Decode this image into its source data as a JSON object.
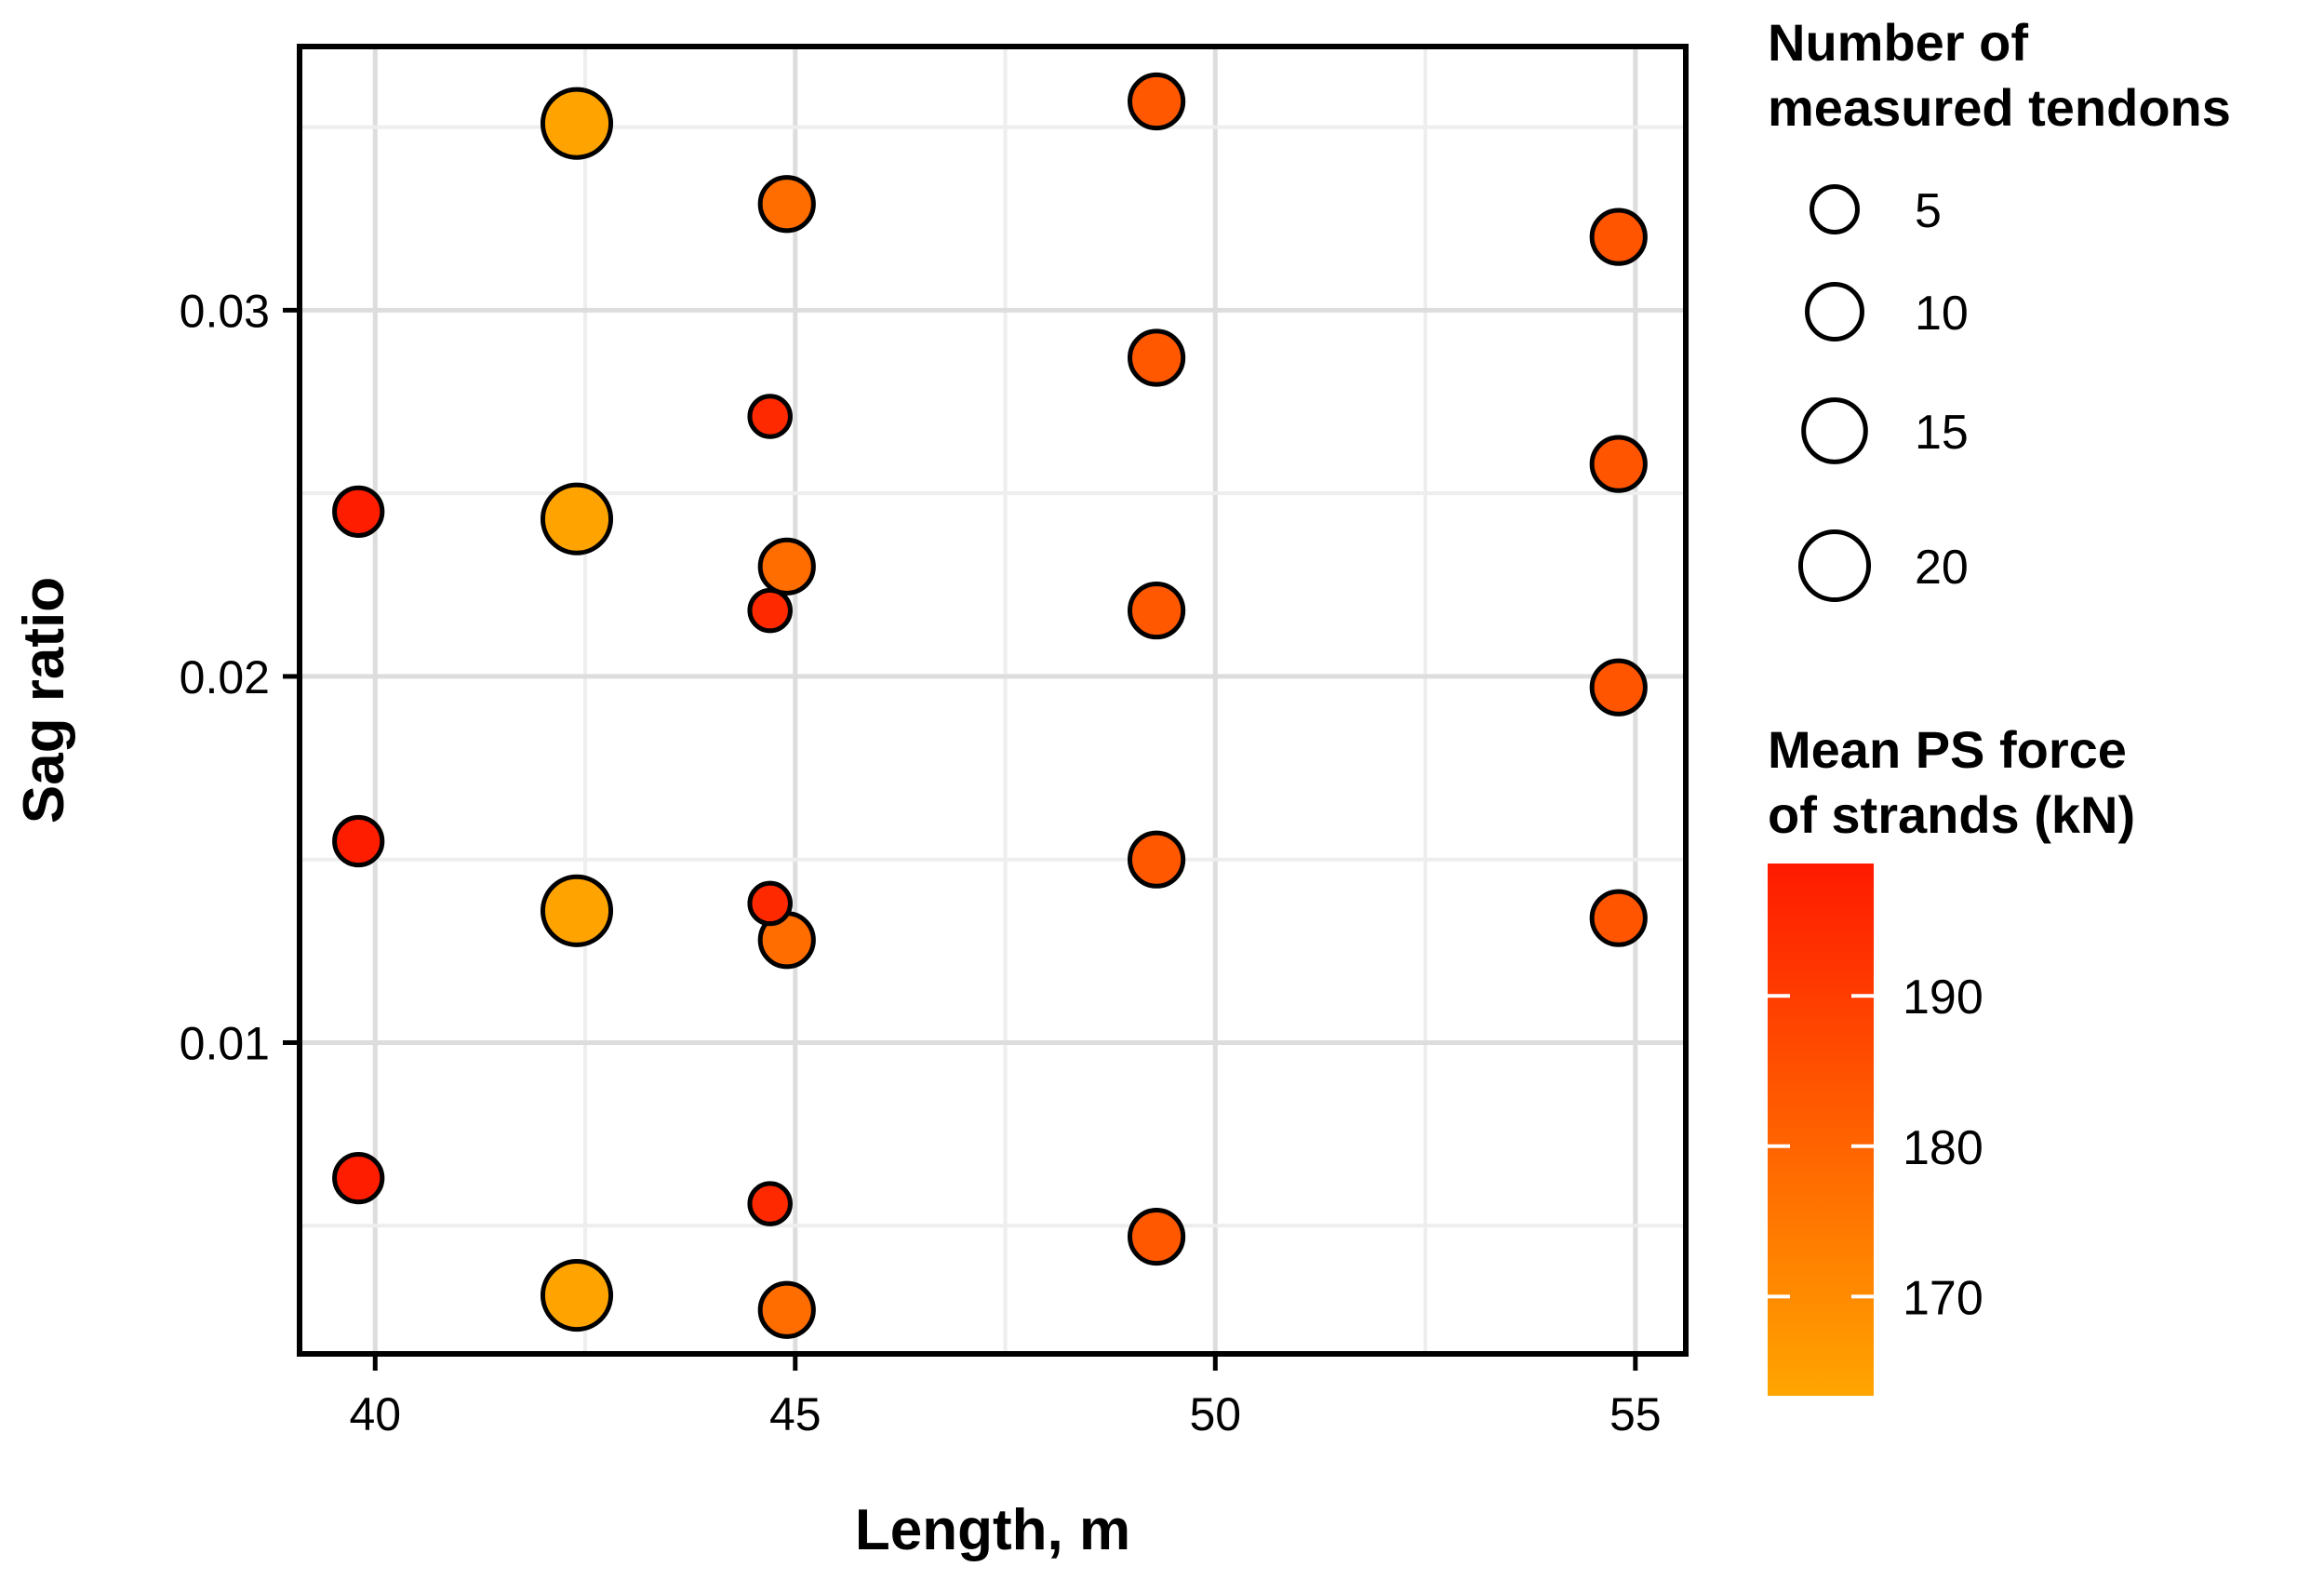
{
  "colors": {
    "low": "#ffa500",
    "high": "#ff1a00",
    "grid_major": "#dddddd",
    "grid_minor": "#eeeeee",
    "stroke": "#000000"
  },
  "chart_data": {
    "type": "scatter",
    "xlabel": "Length, m",
    "ylabel": "Sag ratio",
    "xlim": [
      39.1,
      55.6
    ],
    "ylim": [
      0.0015,
      0.0372
    ],
    "xticks": [
      40,
      45,
      50,
      55
    ],
    "yticks": [
      0.01,
      0.02,
      0.03
    ],
    "xtick_labels": [
      "40",
      "45",
      "50",
      "55"
    ],
    "ytick_labels": [
      "0.01",
      "0.02",
      "0.03"
    ],
    "grid": true,
    "size_legend": {
      "title_lines": [
        "Number of",
        "measured tendons"
      ],
      "values": [
        5,
        10,
        15,
        20
      ],
      "labels": [
        "5",
        "10",
        "15",
        "20"
      ]
    },
    "color_legend": {
      "title_lines": [
        "Mean PS force",
        "of strands (kN)"
      ],
      "range": [
        163.4,
        198.8
      ],
      "ticks": [
        170,
        180,
        190
      ],
      "tick_labels": [
        "170",
        "180",
        "190"
      ]
    },
    "points": [
      {
        "x": 39.8,
        "y": 0.0245,
        "n": 6,
        "force": 198
      },
      {
        "x": 39.8,
        "y": 0.0155,
        "n": 6,
        "force": 198
      },
      {
        "x": 39.8,
        "y": 0.0063,
        "n": 6,
        "force": 198
      },
      {
        "x": 42.4,
        "y": 0.0351,
        "n": 20,
        "force": 164
      },
      {
        "x": 42.4,
        "y": 0.0243,
        "n": 20,
        "force": 164
      },
      {
        "x": 42.4,
        "y": 0.0136,
        "n": 20,
        "force": 164
      },
      {
        "x": 42.4,
        "y": 0.0031,
        "n": 20,
        "force": 164
      },
      {
        "x": 44.7,
        "y": 0.0271,
        "n": 3,
        "force": 195
      },
      {
        "x": 44.7,
        "y": 0.0218,
        "n": 3,
        "force": 195
      },
      {
        "x": 44.7,
        "y": 0.0138,
        "n": 3,
        "force": 195
      },
      {
        "x": 44.7,
        "y": 0.0056,
        "n": 3,
        "force": 195
      },
      {
        "x": 44.9,
        "y": 0.0329,
        "n": 9,
        "force": 178
      },
      {
        "x": 44.9,
        "y": 0.023,
        "n": 9,
        "force": 178
      },
      {
        "x": 44.9,
        "y": 0.0128,
        "n": 9,
        "force": 178
      },
      {
        "x": 44.9,
        "y": 0.0027,
        "n": 9,
        "force": 178
      },
      {
        "x": 49.3,
        "y": 0.0357,
        "n": 9,
        "force": 183
      },
      {
        "x": 49.3,
        "y": 0.0287,
        "n": 9,
        "force": 183
      },
      {
        "x": 49.3,
        "y": 0.0218,
        "n": 9,
        "force": 183
      },
      {
        "x": 49.3,
        "y": 0.015,
        "n": 9,
        "force": 183
      },
      {
        "x": 49.3,
        "y": 0.0047,
        "n": 9,
        "force": 183
      },
      {
        "x": 54.8,
        "y": 0.032,
        "n": 9,
        "force": 184
      },
      {
        "x": 54.8,
        "y": 0.0258,
        "n": 9,
        "force": 184
      },
      {
        "x": 54.8,
        "y": 0.0197,
        "n": 9,
        "force": 184
      },
      {
        "x": 54.8,
        "y": 0.0134,
        "n": 9,
        "force": 184
      }
    ]
  }
}
